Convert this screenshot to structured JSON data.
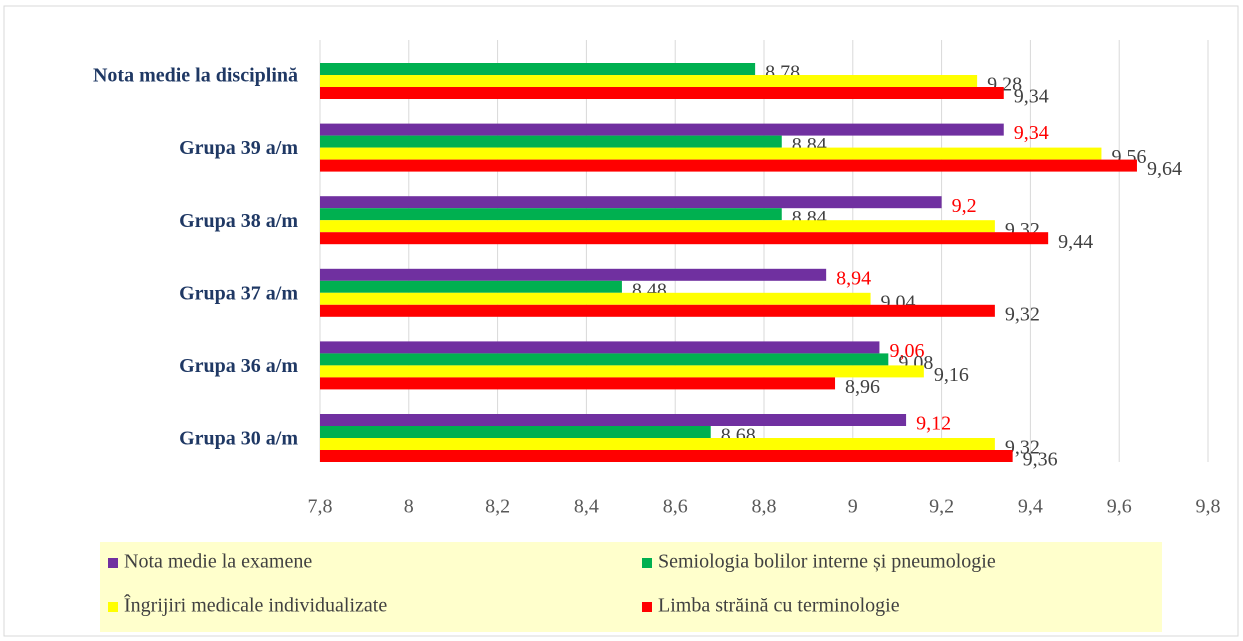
{
  "chart_data": {
    "type": "bar",
    "orientation": "horizontal",
    "categories": [
      "Nota medie la disciplină",
      "Grupa 39 a/m",
      "Grupa 38 a/m",
      "Grupa 37 a/m",
      "Grupa 36 a/m",
      "Grupa 30 a/m"
    ],
    "series": [
      {
        "name": "Nota medie la examene",
        "color": "#7030a0",
        "label_color": "#ff0000",
        "values": [
          null,
          9.34,
          9.2,
          8.94,
          9.06,
          9.12
        ],
        "value_labels": [
          null,
          "9,34",
          "9,2",
          "8,94",
          "9,06",
          "9,12"
        ]
      },
      {
        "name": "Semiologia bolilor interne și pneumologie",
        "color": "#00b050",
        "label_color": "#404040",
        "values": [
          8.78,
          8.84,
          8.84,
          8.48,
          9.08,
          8.68
        ],
        "value_labels": [
          "8,78",
          "8,84",
          "8,84",
          "8,48",
          "9,08",
          "8,68"
        ]
      },
      {
        "name": "Îngrijiri medicale individualizate",
        "color": "#ffff00",
        "label_color": "#404040",
        "values": [
          9.28,
          9.56,
          9.32,
          9.04,
          9.16,
          9.32
        ],
        "value_labels": [
          "9,28",
          "9,56",
          "9,32",
          "9,04",
          "9,16",
          "9,32"
        ]
      },
      {
        "name": "Limba străină cu terminologie",
        "color": "#ff0000",
        "label_color": "#404040",
        "values": [
          9.34,
          9.64,
          9.44,
          9.32,
          8.96,
          9.36
        ],
        "value_labels": [
          "9,34",
          "9,64",
          "9,44",
          "9,32",
          "8,96",
          "9,36"
        ]
      }
    ],
    "xlim": [
      7.8,
      9.8
    ],
    "xticks": [
      {
        "value": 7.8,
        "label": "7,8"
      },
      8,
      {
        "value": 8.2,
        "label": "8,2"
      },
      {
        "value": 8.4,
        "label": "8,4"
      },
      {
        "value": 8.6,
        "label": "8,6"
      },
      {
        "value": 8.8,
        "label": "8,8"
      },
      9,
      {
        "value": 9.2,
        "label": "9,2"
      },
      {
        "value": 9.4,
        "label": "9,4"
      },
      {
        "value": 9.6,
        "label": "9,6"
      },
      {
        "value": 9.8,
        "label": "9,8"
      }
    ],
    "grid": true,
    "legend": "bottom"
  }
}
